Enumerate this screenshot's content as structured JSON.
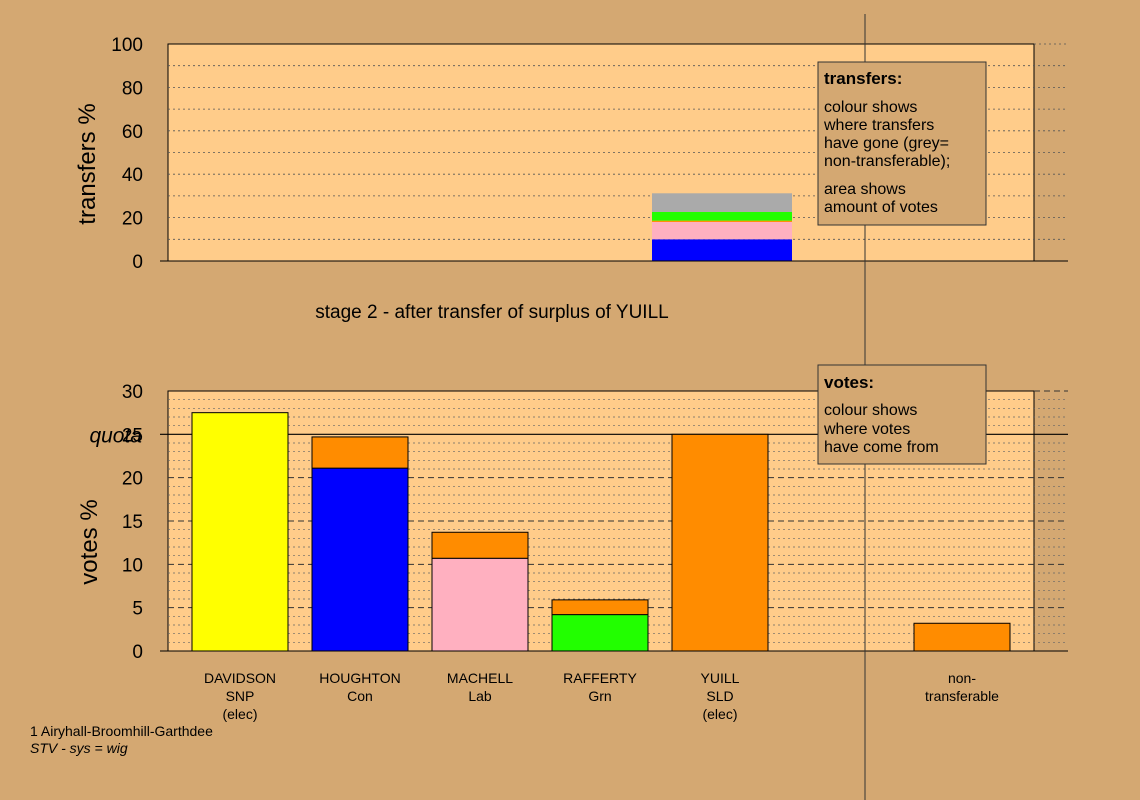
{
  "chart_data": [
    {
      "type": "bar",
      "name": "transfers",
      "ylabel": "transfers %",
      "ylim": [
        0,
        100
      ],
      "yticks": [
        0,
        20,
        40,
        60,
        80,
        100
      ],
      "x": "YUILL",
      "stack": [
        {
          "color": "#0000FF",
          "value": 10
        },
        {
          "color": "#FFB0C0",
          "value": 8
        },
        {
          "color": "#FF8C00",
          "value": 0.6
        },
        {
          "color": "#22FF00",
          "value": 4
        },
        {
          "color": "#AAAAAA",
          "value": 8.6
        }
      ],
      "legend": {
        "title": "transfers:",
        "lines1": [
          "colour shows",
          "where transfers",
          "have gone (grey=",
          "non-transferable);"
        ],
        "lines2": [
          "area shows",
          "amount of votes"
        ]
      }
    },
    {
      "type": "bar",
      "name": "votes",
      "ylabel": "votes %",
      "ylim": [
        0,
        30
      ],
      "yticks": [
        0,
        5,
        10,
        15,
        20,
        25,
        30
      ],
      "quota": 25,
      "quota_label": "quota",
      "categories": [
        {
          "name": "DAVIDSON",
          "party": "SNP",
          "status": "(elec)",
          "segments": [
            {
              "color": "#FFFF00",
              "value": 27.5
            }
          ]
        },
        {
          "name": "HOUGHTON",
          "party": "Con",
          "status": "",
          "segments": [
            {
              "color": "#0000FF",
              "value": 21.1
            },
            {
              "color": "#FF8C00",
              "value": 3.6
            }
          ]
        },
        {
          "name": "MACHELL",
          "party": "Lab",
          "status": "",
          "segments": [
            {
              "color": "#FFB0C0",
              "value": 10.7
            },
            {
              "color": "#FF8C00",
              "value": 3.0
            }
          ]
        },
        {
          "name": "RAFFERTY",
          "party": "Grn",
          "status": "",
          "segments": [
            {
              "color": "#22FF00",
              "value": 4.2
            },
            {
              "color": "#FF8C00",
              "value": 1.7
            }
          ]
        },
        {
          "name": "YUILL",
          "party": "SLD",
          "status": "(elec)",
          "segments": [
            {
              "color": "#FF8C00",
              "value": 25.0
            }
          ]
        },
        {
          "name": "non-",
          "party": "transferable",
          "status": "",
          "segments": [
            {
              "color": "#FF8C00",
              "value": 3.2
            }
          ],
          "separate": true
        }
      ],
      "legend": {
        "title": "votes:",
        "lines": [
          "colour shows",
          "where votes",
          "have come from"
        ]
      }
    }
  ],
  "stage_text": "stage 2 - after transfer of surplus of YUILL",
  "footer": {
    "line1": "1 Airyhall-Broomhill-Garthdee",
    "line2": "STV - sys = wig"
  },
  "colors": {
    "background": "#D4A872",
    "plot_background": "#FFCC8A"
  }
}
